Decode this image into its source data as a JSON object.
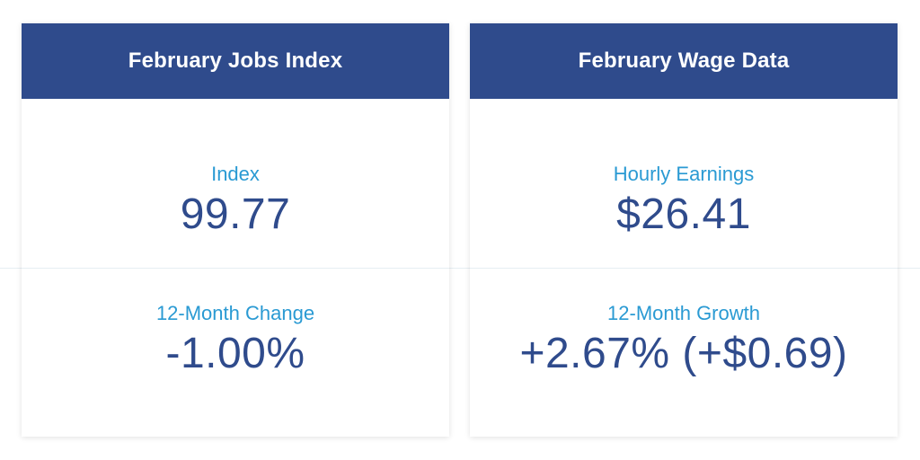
{
  "cards": [
    {
      "title": "February Jobs Index",
      "primary": {
        "label": "Index",
        "value": "99.77"
      },
      "secondary": {
        "label": "12-Month Change",
        "value": "-1.00%"
      }
    },
    {
      "title": "February Wage Data",
      "primary": {
        "label": "Hourly Earnings",
        "value": "$26.41"
      },
      "secondary": {
        "label": "12-Month Growth",
        "value": "+2.67% (+$0.69)"
      }
    }
  ],
  "colors": {
    "header_background": "#2f4b8c",
    "header_text": "#ffffff",
    "label_text": "#2a9ad3",
    "value_text": "#2f4b8c",
    "divider": "#e6eef3"
  }
}
